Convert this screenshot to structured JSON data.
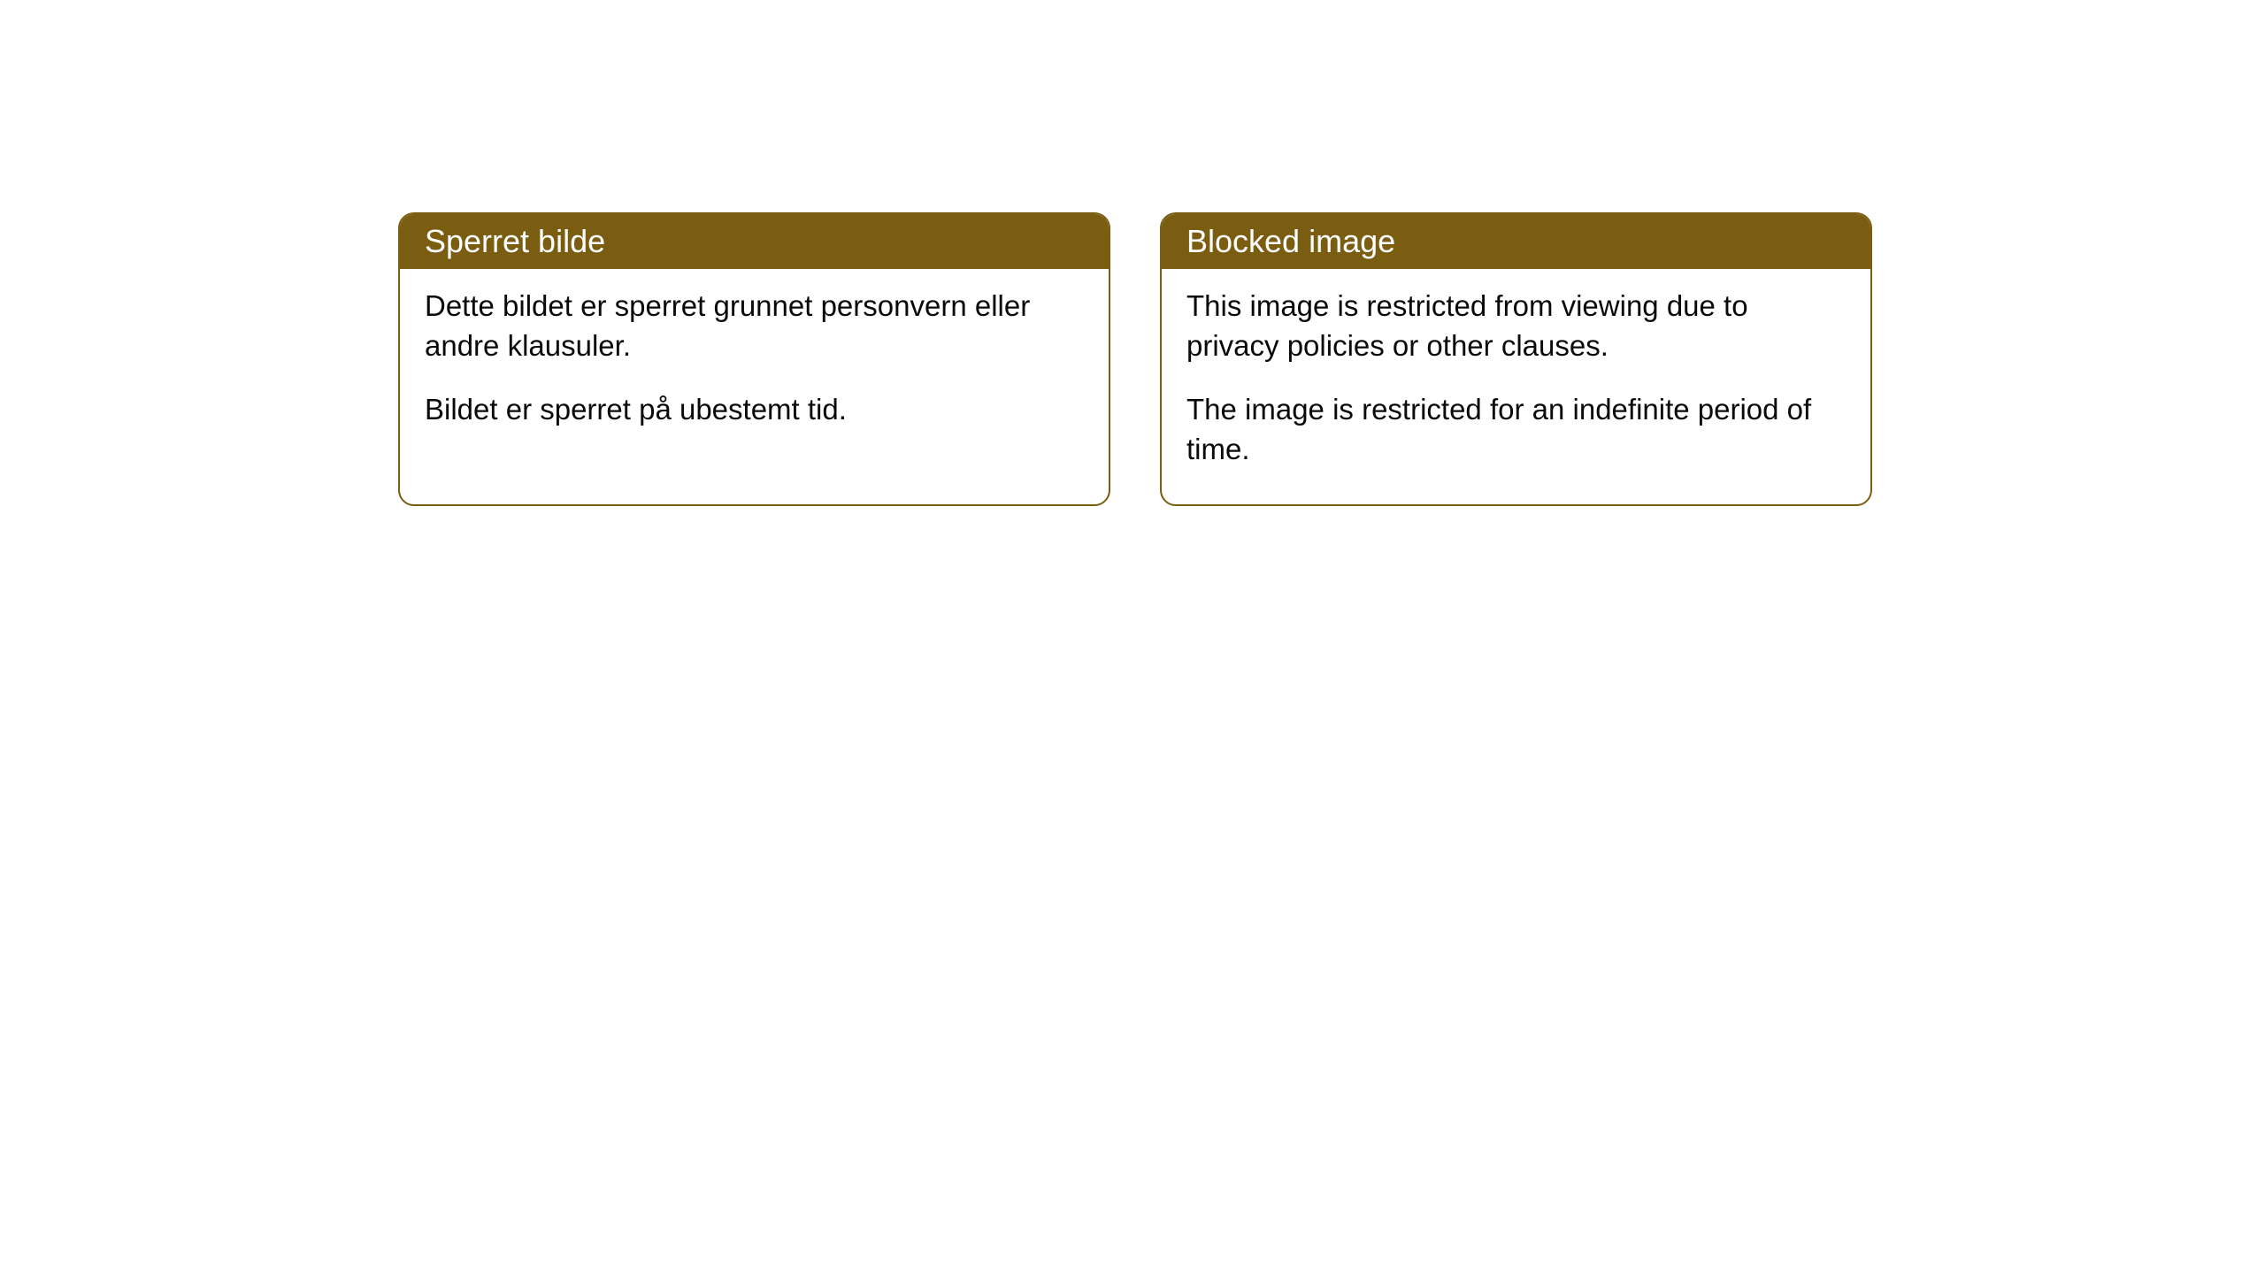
{
  "cards": [
    {
      "title": "Sperret bilde",
      "paragraph1": "Dette bildet er sperret grunnet personvern eller andre klausuler.",
      "paragraph2": "Bildet er sperret på ubestemt tid."
    },
    {
      "title": "Blocked image",
      "paragraph1": "This image is restricted from viewing due to privacy policies or other clauses.",
      "paragraph2": "The image is restricted for an indefinite period of time."
    }
  ],
  "style": {
    "header_bg_color": "#7a5d10",
    "header_text_color": "#ffffff",
    "border_color": "#7a5d10",
    "body_bg_color": "#ffffff",
    "body_text_color": "#0a0a0a",
    "border_radius": 18,
    "title_fontsize": 36,
    "body_fontsize": 33
  }
}
